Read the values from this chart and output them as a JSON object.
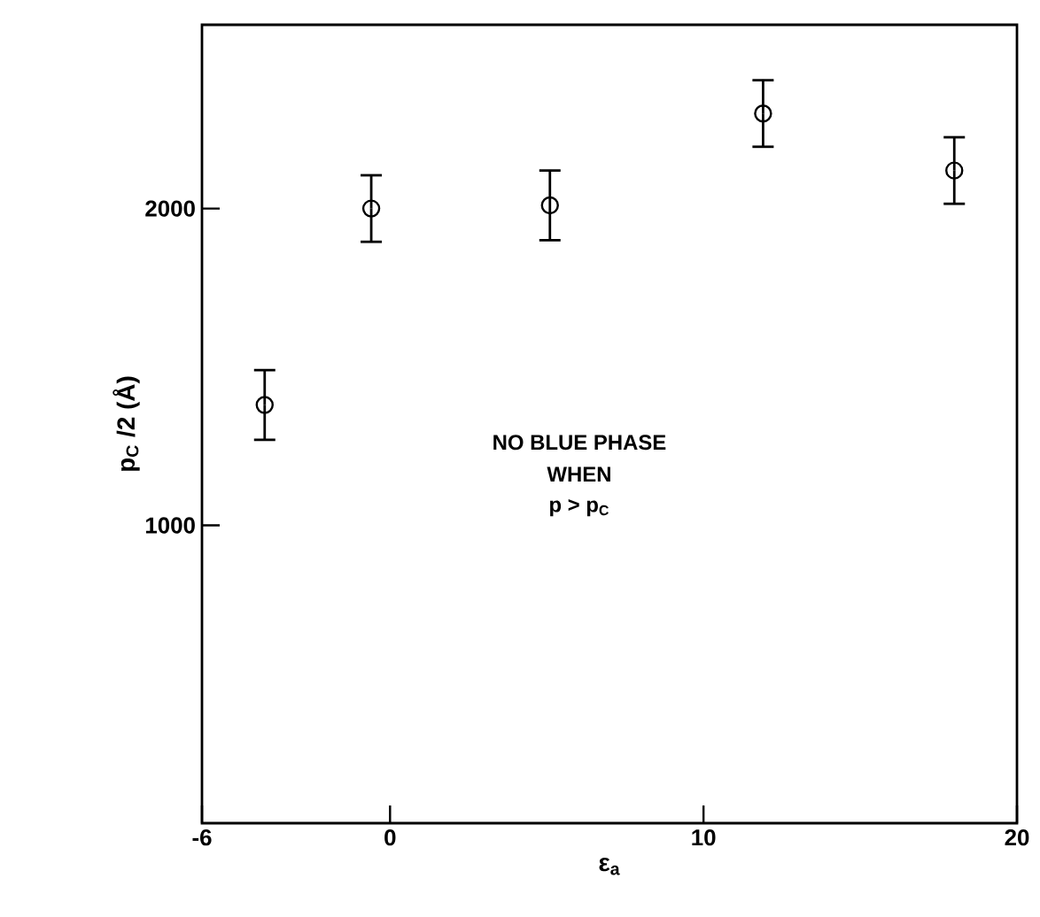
{
  "chart_data": {
    "type": "scatter",
    "xlabel": "ε$_{a}$",
    "ylabel": "p$_{C}$ /2 (Å)",
    "x": [
      -4.0,
      -0.6,
      5.1,
      11.9,
      18.0
    ],
    "series": [
      {
        "color": "#000000",
        "values": [
          1380,
          2000,
          2010,
          2300,
          2120
        ],
        "errors": [
          110,
          105,
          110,
          105,
          105
        ]
      }
    ],
    "xlim": [
      -6,
      20
    ],
    "xticks": [
      -6,
      0,
      10,
      20
    ],
    "ylim": [
      60,
      2580
    ],
    "yticks": [
      1000,
      2000
    ],
    "marker": "circle",
    "grid": false,
    "annotations": [
      "NO BLUE PHASE",
      "WHEN",
      "p > p$_{C}$"
    ]
  }
}
